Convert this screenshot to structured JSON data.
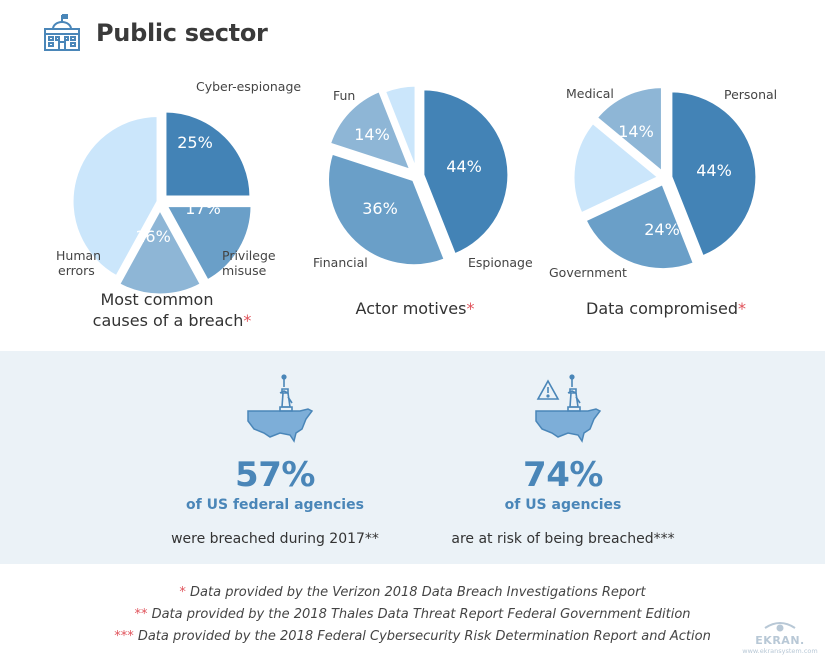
{
  "header": {
    "title": "Public sector",
    "icon": "government-building-icon"
  },
  "colors": {
    "accent": "#4a86b8",
    "asterisk": "#e0525a",
    "band_bg": "#ebf2f7",
    "slice_dark": "#4383b6",
    "slice_mid": "#6a9fc8",
    "slice_light": "#8eb6d6",
    "slice_pale": "#cbe6fb"
  },
  "chart_data": [
    {
      "type": "pie",
      "title": "Most common causes of a breach",
      "title_lines": [
        "Most common",
        "causes of a breach"
      ],
      "footnote_marker": "*",
      "slices": [
        {
          "name": "Cyber-espionage",
          "value": 25,
          "label": "25%"
        },
        {
          "name": "Privilege misuse",
          "value": 17,
          "label": "17%"
        },
        {
          "name": "Human errors",
          "value": 16,
          "label": "16%"
        },
        {
          "name": "",
          "value": 42,
          "label": ""
        }
      ]
    },
    {
      "type": "pie",
      "title": "Actor motives",
      "title_lines": [
        "Actor motives"
      ],
      "footnote_marker": "*",
      "slices": [
        {
          "name": "Espionage",
          "value": 44,
          "label": "44%"
        },
        {
          "name": "Financial",
          "value": 36,
          "label": "36%"
        },
        {
          "name": "Fun",
          "value": 14,
          "label": "14%"
        },
        {
          "name": "",
          "value": 6,
          "label": ""
        }
      ]
    },
    {
      "type": "pie",
      "title": "Data compromised",
      "title_lines": [
        "Data compromised"
      ],
      "footnote_marker": "*",
      "slices": [
        {
          "name": "Personal",
          "value": 44,
          "label": "44%"
        },
        {
          "name": "Government",
          "value": 24,
          "label": "24%"
        },
        {
          "name": "",
          "value": 18,
          "label": ""
        },
        {
          "name": "Medical",
          "value": 14,
          "label": "14%"
        }
      ]
    }
  ],
  "stats": [
    {
      "value": "57%",
      "subject": "of US federal agencies",
      "description": "were breached during 2017**",
      "icon": "us-map-statue-of-liberty-icon"
    },
    {
      "value": "74%",
      "subject": "of US agencies",
      "description": "are at risk of being breached***",
      "icon": "us-map-warning-icon"
    }
  ],
  "footnotes": [
    {
      "marker": "*",
      "text": " Data provided by the Verizon 2018 Data Breach Investigations Report"
    },
    {
      "marker": "**",
      "text": " Data provided by the 2018 Thales Data Threat Report Federal Government Edition"
    },
    {
      "marker": "***",
      "text": " Data provided by the 2018 Federal Cybersecurity Risk Determination Report and Action"
    }
  ],
  "logo": {
    "brand": "EKRAN.",
    "url": "www.ekransystem.com"
  }
}
